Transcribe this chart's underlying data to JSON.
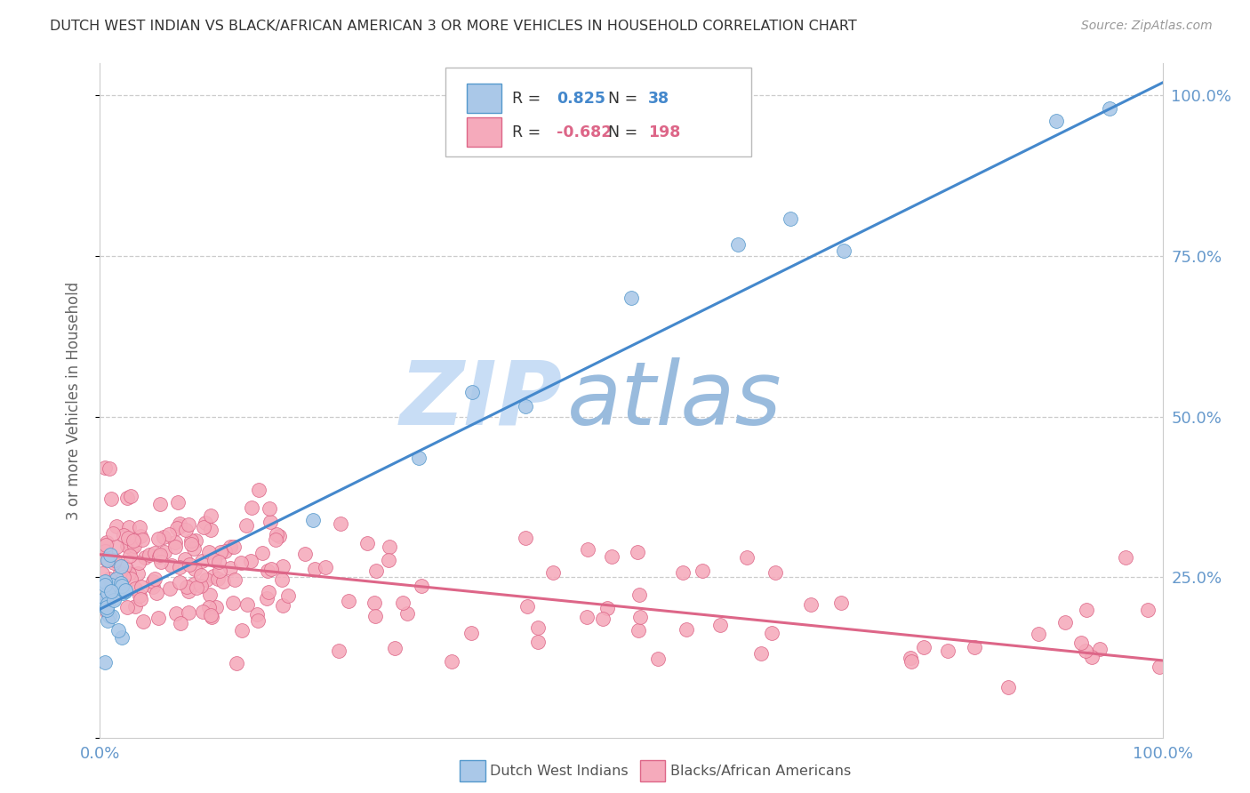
{
  "title": "DUTCH WEST INDIAN VS BLACK/AFRICAN AMERICAN 3 OR MORE VEHICLES IN HOUSEHOLD CORRELATION CHART",
  "source": "Source: ZipAtlas.com",
  "ylabel": "3 or more Vehicles in Household",
  "right_ytick_labels": [
    "100.0%",
    "75.0%",
    "50.0%",
    "25.0%"
  ],
  "right_ytick_vals": [
    1.0,
    0.75,
    0.5,
    0.25
  ],
  "watermark_zip": "ZIP",
  "watermark_atlas": "atlas",
  "blue_R": "0.825",
  "blue_N": "38",
  "pink_R": "-0.682",
  "pink_N": "198",
  "legend_label_blue": "Dutch West Indians",
  "legend_label_pink": "Blacks/African Americans",
  "blue_face": "#aac8e8",
  "blue_edge": "#5599cc",
  "blue_line": "#4488cc",
  "pink_face": "#f5aabb",
  "pink_edge": "#dd6688",
  "pink_line": "#dd6688",
  "title_color": "#333333",
  "axis_tick_color": "#6699cc",
  "grid_color": "#cccccc",
  "watermark_color_zip": "#c8ddf5",
  "watermark_color_atlas": "#99bbdd",
  "source_color": "#999999",
  "legend_value_color_blue": "#4488cc",
  "legend_value_color_pink": "#dd6688",
  "xmin": 0.0,
  "xmax": 1.0,
  "ymin": 0.0,
  "ymax": 1.05,
  "blue_line_start_x": 0.0,
  "blue_line_start_y": 0.2,
  "blue_line_end_x": 1.0,
  "blue_line_end_y": 1.02,
  "pink_line_start_x": 0.0,
  "pink_line_start_y": 0.285,
  "pink_line_end_x": 1.0,
  "pink_line_end_y": 0.12
}
